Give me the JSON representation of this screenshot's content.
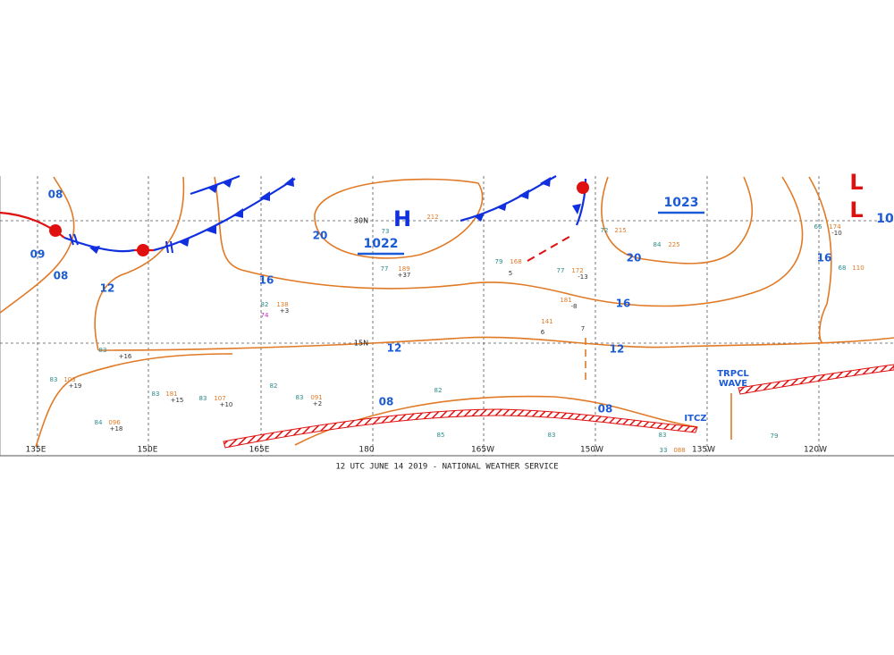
{
  "map": {
    "footer": "12 UTC JUNE 14 2019 - NATIONAL WEATHER SERVICE",
    "longitude_labels": [
      "135E",
      "150E",
      "165E",
      "180",
      "165W",
      "150W",
      "135W",
      "120W"
    ],
    "latitude_labels": [
      "30N",
      "15N"
    ],
    "isobar_labels": [
      "08",
      "09",
      "08",
      "12",
      "20",
      "16",
      "12",
      "08",
      "20",
      "16",
      "12",
      "08",
      "16"
    ],
    "pressure_centers": [
      {
        "symbol": "H",
        "value": "1022"
      },
      {
        "value": "1023"
      },
      {
        "symbol": "L",
        "value": "10"
      },
      {
        "symbol": "L"
      }
    ],
    "annotations": {
      "tropical_wave": [
        "TRPCL",
        "WAVE"
      ],
      "itcz": "ITCZ"
    },
    "stations": [
      "77",
      "189",
      "+37",
      "82",
      "138",
      "+3",
      "74",
      "83",
      "+16",
      "83",
      "103",
      "+19",
      "83",
      "181",
      "+15",
      "83",
      "107",
      "+10",
      "82",
      "83",
      "091",
      "+2",
      "84",
      "096",
      "+18",
      "79",
      "168",
      "77",
      "172",
      "-13",
      "72",
      "215",
      "84",
      "225",
      "66",
      "174",
      "-10",
      "68",
      "110",
      "85",
      "82",
      "83",
      "83",
      "33",
      "088",
      "79",
      "6",
      "5",
      "7",
      "181",
      "-8",
      "141",
      "212",
      "73"
    ]
  }
}
